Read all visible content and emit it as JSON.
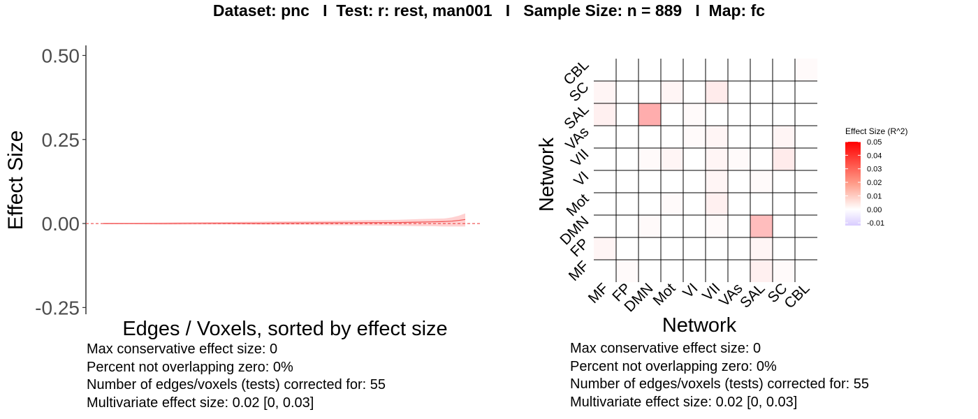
{
  "title": "Dataset: pnc   I  Test: r: rest, man001   I   Sample Size: n = 889   I  Map: fc",
  "chart_data": [
    {
      "type": "area",
      "xlabel": "Edges / Voxels, sorted by effect size",
      "ylabel": "Effect Size",
      "ylim": [
        -0.27,
        0.53
      ],
      "y_ticks": [
        "0.50",
        "0.25",
        "0.00",
        "-0.25"
      ],
      "y_tick_values": [
        0.5,
        0.25,
        0.0,
        -0.25
      ],
      "reference_line": 0,
      "x": [
        1,
        5,
        10,
        15,
        20,
        25,
        30,
        35,
        40,
        45,
        48,
        50,
        52,
        53,
        54,
        55
      ],
      "estimate": [
        0.0,
        0.0,
        0.0,
        0.0005,
        0.001,
        0.001,
        0.0015,
        0.002,
        0.0025,
        0.003,
        0.004,
        0.005,
        0.006,
        0.007,
        0.009,
        0.012
      ],
      "ci_lower": [
        -0.002,
        -0.002,
        -0.003,
        -0.003,
        -0.003,
        -0.004,
        -0.004,
        -0.005,
        -0.006,
        -0.007,
        -0.008,
        -0.008,
        -0.009,
        -0.009,
        -0.009,
        -0.009
      ],
      "ci_upper": [
        0.002,
        0.002,
        0.003,
        0.004,
        0.005,
        0.006,
        0.007,
        0.008,
        0.01,
        0.011,
        0.013,
        0.014,
        0.015,
        0.018,
        0.023,
        0.03
      ],
      "stats": [
        "Max conservative effect size: 0",
        "Percent not overlapping zero: 0%",
        "Number of edges/voxels (tests) corrected for: 55",
        "Multivariate effect size: 0.02 [0, 0.03]"
      ]
    },
    {
      "type": "heatmap",
      "xlabel": "Network",
      "ylabel": "Network",
      "x_labels": [
        "MF",
        "FP",
        "DMN",
        "Mot",
        "VI",
        "VII",
        "VAs",
        "SAL",
        "SC",
        "CBL"
      ],
      "y_labels": [
        "CBL",
        "SC",
        "SAL",
        "VAs",
        "VII",
        "VI",
        "Mot",
        "DMN",
        "FP",
        "MF"
      ],
      "values": [
        [
          0.0,
          0.0,
          0.0,
          0.0,
          0.0,
          0.0,
          0.0,
          0.0,
          0.0,
          0.001
        ],
        [
          0.002,
          0.0,
          0.0,
          0.002,
          0.0,
          0.004,
          0.0,
          0.0,
          0.0,
          0.0
        ],
        [
          0.003,
          0.0,
          0.016,
          0.0,
          0.001,
          0.0,
          0.0,
          0.0,
          0.0,
          0.0
        ],
        [
          0.0,
          0.0,
          0.0,
          0.0,
          0.001,
          0.002,
          0.0,
          0.0,
          0.002,
          0.0
        ],
        [
          0.0,
          0.0,
          0.001,
          0.002,
          0.0,
          0.002,
          0.001,
          0.0,
          0.004,
          0.0
        ],
        [
          0.0,
          0.0,
          0.0,
          0.0,
          0.0,
          0.002,
          0.0,
          0.001,
          0.0,
          0.0
        ],
        [
          0.0,
          0.0,
          0.0,
          0.001,
          0.0,
          0.003,
          0.0,
          0.0,
          0.0,
          0.0
        ],
        [
          0.0,
          0.0,
          0.001,
          0.0,
          0.0,
          0.001,
          0.0,
          0.013,
          0.0,
          0.0
        ],
        [
          0.002,
          0.0,
          0.0,
          0.0,
          0.0,
          0.0,
          0.0,
          0.002,
          0.0,
          0.0
        ],
        [
          0.0,
          0.001,
          0.0,
          0.0,
          0.0,
          0.0,
          0.0,
          0.003,
          0.001,
          0.0
        ]
      ],
      "legend_title": "Effect Size (R^2)",
      "legend_ticks": [
        "0.05",
        "0.04",
        "0.03",
        "0.02",
        "0.01",
        "0.00",
        "-0.01"
      ],
      "legend_tick_values": [
        0.05,
        0.04,
        0.03,
        0.02,
        0.01,
        0.0,
        -0.01
      ],
      "legend_range": [
        -0.012,
        0.05
      ],
      "colors": {
        "high": "#ff0000",
        "mid": "#ffffff",
        "low": "#8a66ff"
      },
      "stats": [
        "Max conservative effect size: 0",
        "Percent not overlapping zero: 0%",
        "Number of edges/voxels (tests) corrected for: 55",
        "Multivariate effect size: 0.02 [0, 0.03]"
      ]
    }
  ]
}
